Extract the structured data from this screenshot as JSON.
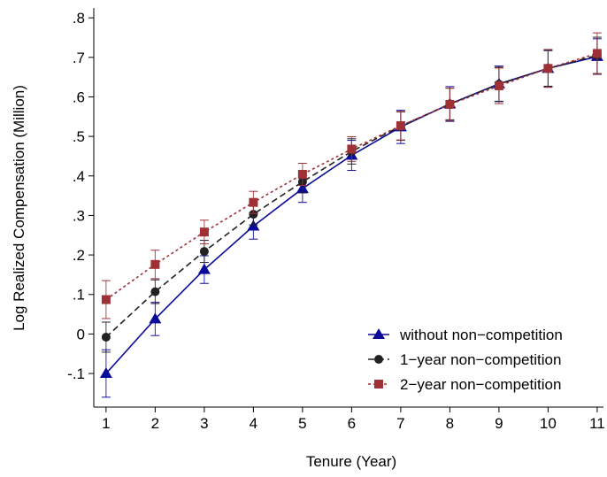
{
  "chart_data": {
    "type": "line",
    "title": "",
    "xlabel": "Tenure (Year)",
    "ylabel": "Log Realized Compensation (Million)",
    "xlim": [
      0.75,
      11.2
    ],
    "ylim": [
      -0.185,
      0.825
    ],
    "xticks": [
      1,
      2,
      3,
      4,
      5,
      6,
      7,
      8,
      9,
      10,
      11
    ],
    "xtick_labels": [
      "1",
      "2",
      "3",
      "4",
      "5",
      "6",
      "7",
      "8",
      "9",
      "10",
      "11"
    ],
    "yticks": [
      -0.1,
      0,
      0.1,
      0.2,
      0.3,
      0.4,
      0.5,
      0.6,
      0.7,
      0.8
    ],
    "ytick_labels": [
      "-.1",
      "0",
      ".1",
      ".2",
      ".3",
      ".4",
      ".5",
      ".6",
      ".7",
      ".8"
    ],
    "grid": false,
    "legend_position": "bottom-right",
    "x": [
      1,
      2,
      3,
      4,
      5,
      6,
      7,
      8,
      9,
      10,
      11
    ],
    "series": [
      {
        "name": "without non−competition",
        "color": "#0b0b99",
        "marker": "triangle",
        "line_style": "solid",
        "values": [
          -0.1,
          0.038,
          0.163,
          0.273,
          0.368,
          0.452,
          0.524,
          0.582,
          0.633,
          0.672,
          0.702
        ],
        "err": [
          0.06,
          0.042,
          0.035,
          0.033,
          0.035,
          0.038,
          0.042,
          0.044,
          0.045,
          0.046,
          0.045
        ]
      },
      {
        "name": "1−year non−competition",
        "color": "#222222",
        "marker": "circle",
        "line_style": "dashed",
        "values": [
          -0.008,
          0.107,
          0.209,
          0.303,
          0.385,
          0.462,
          0.526,
          0.582,
          0.632,
          0.672,
          0.705
        ],
        "err": [
          0.038,
          0.03,
          0.028,
          0.027,
          0.028,
          0.032,
          0.036,
          0.04,
          0.043,
          0.045,
          0.046
        ]
      },
      {
        "name": "2−year non−competition",
        "color": "#9e3136",
        "marker": "square",
        "line_style": "dotted",
        "values": [
          0.087,
          0.176,
          0.258,
          0.333,
          0.404,
          0.468,
          0.527,
          0.581,
          0.628,
          0.672,
          0.71
        ],
        "err": [
          0.048,
          0.036,
          0.03,
          0.028,
          0.028,
          0.031,
          0.036,
          0.041,
          0.045,
          0.048,
          0.052
        ]
      }
    ]
  }
}
